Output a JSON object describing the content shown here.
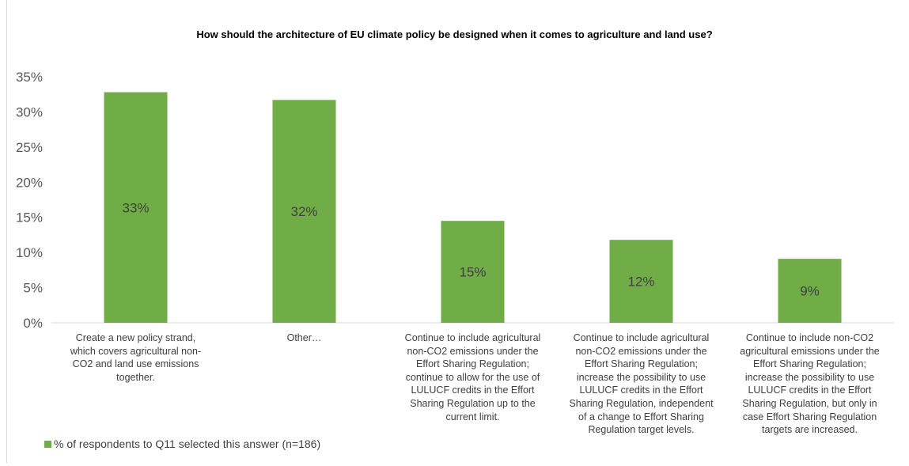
{
  "chart_data": {
    "type": "bar",
    "title": "How should the architecture of EU climate policy be designed when it comes to agriculture and land use?",
    "categories": [
      "Create a new policy strand,\nwhich covers agricultural non-\nCO2 and land use emissions\ntogether.",
      "Other…",
      "Continue to include agricultural\nnon-CO2 emissions under the\nEffort Sharing Regulation;\ncontinue to allow for the use of\nLULUCF credits in the Effort\nSharing Regulation up to the\ncurrent limit.",
      "Continue to include agricultural\nnon-CO2 emissions under the\nEffort Sharing Regulation;\nincrease the possibility to use\nLULUCF credits in the Effort\nSharing Regulation, independent\nof a change to Effort Sharing\nRegulation target levels.",
      "Continue to include non-CO2\nagricultural emissions under the\nEffort Sharing Regulation;\nincrease the possibility to use\nLULUCF credits in the Effort\nSharing Regulation, but only in\ncase Effort Sharing Regulation\ntargets are increased."
    ],
    "values": [
      0.328,
      0.317,
      0.145,
      0.118,
      0.091
    ],
    "data_labels": [
      "33%",
      "32%",
      "15%",
      "12%",
      "9%"
    ],
    "yticks": [
      "0%",
      "5%",
      "10%",
      "15%",
      "20%",
      "25%",
      "30%",
      "35%"
    ],
    "ylim": [
      0,
      0.35
    ],
    "legend": "% of respondents to Q11 selected this answer (n=186)",
    "legend_position": "bottom-left",
    "grid": false,
    "bar_color": "#70ad47"
  }
}
